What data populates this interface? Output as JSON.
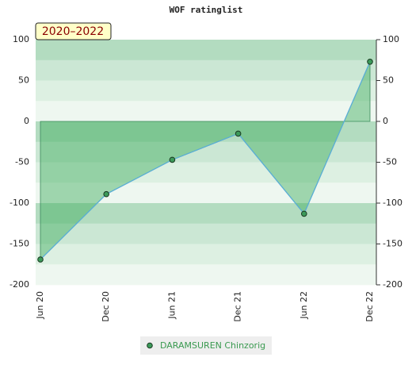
{
  "chart_data": {
    "type": "line",
    "title": "WOF ratinglist",
    "annotation": "2020–2022",
    "categories": [
      "Jun 20",
      "Dec 20",
      "Jun 21",
      "Dec 21",
      "Jun 22",
      "Dec 22"
    ],
    "series": [
      {
        "name": "DARAMSUREN Chinzorig",
        "color": "#5aaed6",
        "values": [
          -169,
          -89,
          -47,
          -15,
          -113,
          73
        ]
      }
    ],
    "ylim": [
      -200,
      100
    ],
    "yticks": [
      -200,
      -150,
      -100,
      -50,
      0,
      50,
      100
    ],
    "grid": true
  }
}
